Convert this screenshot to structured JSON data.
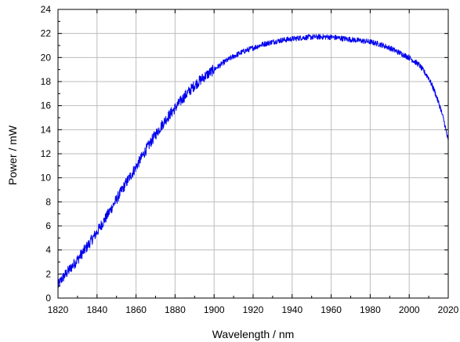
{
  "chart_data": {
    "type": "line",
    "title": "",
    "xlabel": "Wavelength / nm",
    "ylabel": "Power / mW",
    "xlim": [
      1820,
      2020
    ],
    "ylim": [
      0,
      24
    ],
    "x_ticks": [
      1820,
      1840,
      1860,
      1880,
      1900,
      1920,
      1940,
      1960,
      1980,
      2000,
      2020
    ],
    "y_ticks": [
      0,
      2,
      4,
      6,
      8,
      10,
      12,
      14,
      16,
      18,
      20,
      22,
      24
    ],
    "grid": true,
    "legend": "none",
    "series": [
      {
        "color": "#0000ee",
        "x": [
          1820,
          1822,
          1825,
          1830,
          1835,
          1840,
          1845,
          1850,
          1855,
          1860,
          1865,
          1870,
          1875,
          1880,
          1885,
          1890,
          1895,
          1900,
          1905,
          1910,
          1915,
          1920,
          1925,
          1930,
          1935,
          1940,
          1945,
          1950,
          1955,
          1960,
          1965,
          1970,
          1975,
          1980,
          1985,
          1990,
          1995,
          2000,
          2005,
          2010,
          2013,
          2016,
          2018,
          2020
        ],
        "y": [
          1.0,
          1.6,
          2.2,
          3.2,
          4.3,
          5.5,
          6.8,
          8.2,
          9.6,
          10.9,
          12.3,
          13.6,
          14.8,
          15.8,
          16.8,
          17.7,
          18.4,
          19.0,
          19.6,
          20.1,
          20.5,
          20.8,
          21.1,
          21.3,
          21.45,
          21.55,
          21.65,
          21.7,
          21.72,
          21.7,
          21.6,
          21.5,
          21.4,
          21.3,
          21.1,
          20.8,
          20.4,
          20.0,
          19.4,
          18.3,
          17.2,
          15.8,
          14.6,
          13.0
        ]
      }
    ]
  }
}
